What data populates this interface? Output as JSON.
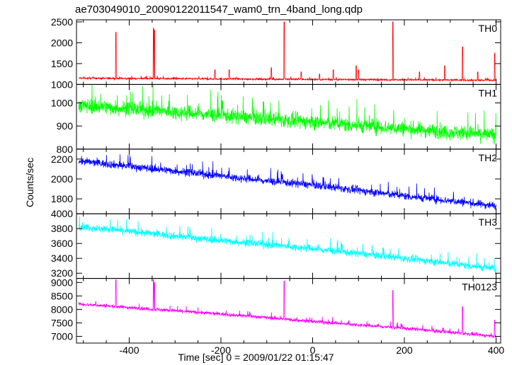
{
  "chart_data": {
    "type": "line",
    "title": "ae703049010_20090122011547_wam0_trn_4band_long.qdp",
    "xlabel": "Time [sec] 0 = 2009/01/22 01:15:47",
    "ylabel": "Counts/sec",
    "xlim": [
      -515,
      410
    ],
    "xticks": [
      -400,
      -200,
      0,
      200,
      400
    ],
    "grid": false,
    "panels": [
      {
        "name": "TH0",
        "color": "#ff0000",
        "ylim": [
          1000,
          2550
        ],
        "yticks": [
          1000,
          1500,
          2000,
          2500
        ],
        "baseline": [
          [
            -510,
            1150
          ],
          [
            400,
            1100
          ]
        ],
        "noise": 30,
        "spikes": [
          [
            -429,
            2250
          ],
          [
            -347,
            2350
          ],
          [
            -345,
            2300
          ],
          [
            -213,
            1350
          ],
          [
            -182,
            1350
          ],
          [
            -90,
            1400
          ],
          [
            -62,
            2500
          ],
          [
            -25,
            1300
          ],
          [
            15,
            1250
          ],
          [
            45,
            1350
          ],
          [
            95,
            1450
          ],
          [
            100,
            1350
          ],
          [
            175,
            2500
          ],
          [
            233,
            1300
          ],
          [
            288,
            1450
          ],
          [
            327,
            1900
          ],
          [
            360,
            1300
          ],
          [
            397,
            1750
          ]
        ]
      },
      {
        "name": "TH1",
        "color": "#00ff00",
        "ylim": [
          800,
          1080
        ],
        "yticks": [
          800,
          900,
          1000
        ],
        "baseline": [
          [
            -510,
            990
          ],
          [
            400,
            860
          ]
        ],
        "noise": 45,
        "spikes": []
      },
      {
        "name": "TH2",
        "color": "#0000ff",
        "ylim": [
          1650,
          2300
        ],
        "yticks": [
          1800,
          2000,
          2200
        ],
        "baseline": [
          [
            -510,
            2180
          ],
          [
            -300,
            2080
          ],
          [
            -100,
            1980
          ],
          [
            0,
            1940
          ],
          [
            200,
            1830
          ],
          [
            400,
            1730
          ]
        ],
        "noise": 55,
        "spikes": []
      },
      {
        "name": "TH3",
        "color": "#00ffff",
        "ylim": [
          3130,
          4000
        ],
        "yticks": [
          3200,
          3400,
          3600,
          3800,
          4000
        ],
        "baseline": [
          [
            -510,
            3830
          ],
          [
            -200,
            3640
          ],
          [
            0,
            3530
          ],
          [
            200,
            3400
          ],
          [
            400,
            3260
          ]
        ],
        "noise": 70,
        "spikes": []
      },
      {
        "name": "TH0123",
        "color": "#ff00ff",
        "ylim": [
          6750,
          9150
        ],
        "yticks": [
          7000,
          7500,
          8000,
          8500,
          9000
        ],
        "baseline": [
          [
            -510,
            8200
          ],
          [
            -300,
            7950
          ],
          [
            -100,
            7700
          ],
          [
            0,
            7550
          ],
          [
            200,
            7300
          ],
          [
            400,
            7000
          ]
        ],
        "noise": 90,
        "spikes": [
          [
            -429,
            9100
          ],
          [
            -347,
            9100
          ],
          [
            -345,
            9000
          ],
          [
            -62,
            9050
          ],
          [
            175,
            8700
          ],
          [
            327,
            8100
          ],
          [
            397,
            7600
          ]
        ]
      }
    ]
  }
}
